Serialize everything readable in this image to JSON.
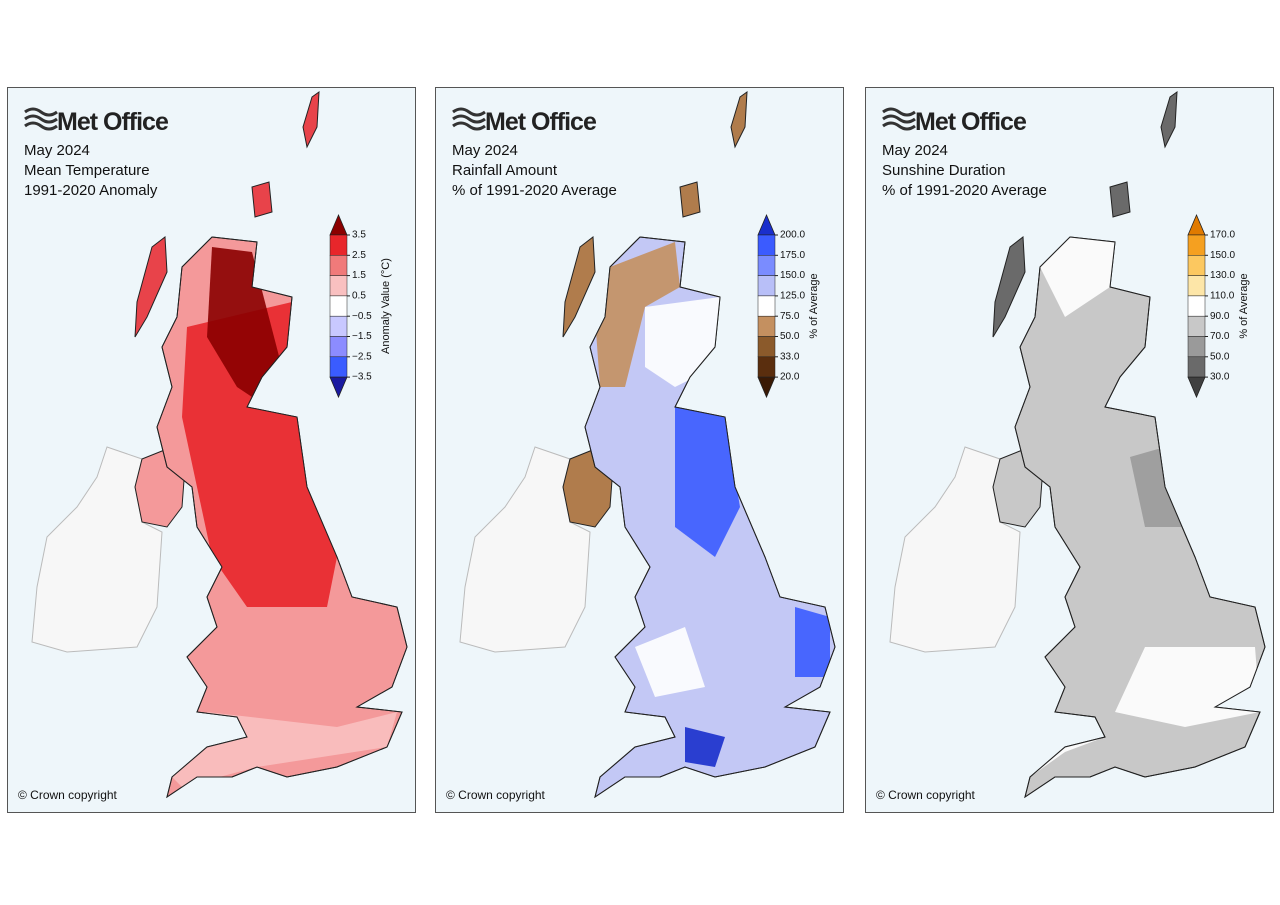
{
  "panels": [
    {
      "logo": "Met Office",
      "title_lines": [
        "May 2024",
        "Mean Temperature",
        "1991-2020 Anomaly"
      ],
      "colorbar": {
        "label": "Anomaly Value (°C)",
        "ticks": [
          "3.5",
          "2.5",
          "1.5",
          "0.5",
          "−0.5",
          "−1.5",
          "−2.5",
          "−3.5"
        ],
        "colors": [
          "#8b0000",
          "#e8262b",
          "#f07a7a",
          "#f9c0c0",
          "#ffffff",
          "#c8c8ff",
          "#8c8cff",
          "#3a5cff",
          "#1a1aa0"
        ]
      },
      "copyright": "© Crown copyright"
    },
    {
      "logo": "Met Office",
      "title_lines": [
        "May 2024",
        "Rainfall Amount",
        "% of 1991-2020 Average"
      ],
      "colorbar": {
        "label": "% of Average",
        "ticks": [
          "200.0",
          "175.0",
          "150.0",
          "125.0",
          "75.0",
          "50.0",
          "33.0",
          "20.0"
        ],
        "colors": [
          "#1a2fcc",
          "#3b5bff",
          "#7a8cff",
          "#b8bff8",
          "#ffffff",
          "#c49060",
          "#8b5a2b",
          "#5a2e0e",
          "#3a1a05"
        ]
      },
      "copyright": "© Crown copyright"
    },
    {
      "logo": "Met Office",
      "title_lines": [
        "May 2024",
        "Sunshine Duration",
        "% of 1991-2020 Average"
      ],
      "colorbar": {
        "label": "% of Average",
        "ticks": [
          "170.0",
          "150.0",
          "130.0",
          "110.0",
          "90.0",
          "70.0",
          "50.0",
          "30.0"
        ],
        "colors": [
          "#e07a00",
          "#f5a020",
          "#fcc860",
          "#fde6a8",
          "#ffffff",
          "#c8c8c8",
          "#9a9a9a",
          "#6a6a6a",
          "#404040"
        ]
      },
      "copyright": "© Crown copyright"
    }
  ]
}
